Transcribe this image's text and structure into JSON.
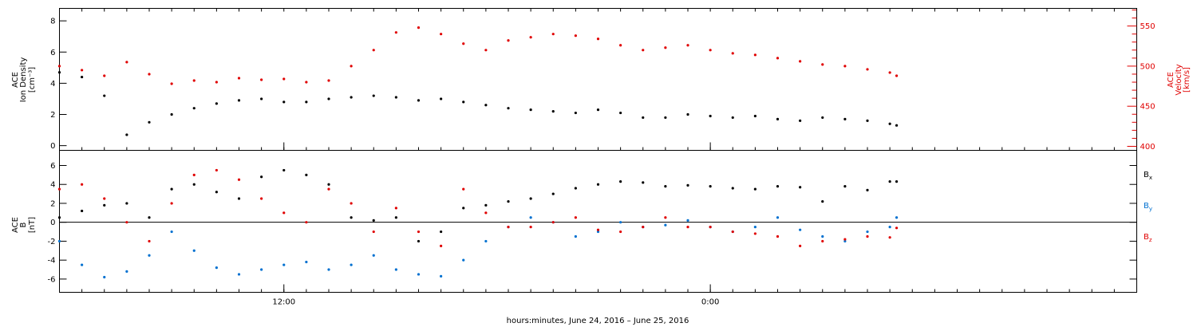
{
  "chart_data": [
    {
      "type": "scatter",
      "panel": "top",
      "left_axis": {
        "label_lines": [
          "ACE",
          "Ion Density",
          "[cm⁻³]"
        ],
        "range": [
          -0.3,
          8.8
        ],
        "ticks": [
          0,
          2,
          4,
          6,
          8
        ],
        "tick_labels": [
          "0",
          "2",
          "4",
          "6",
          "8"
        ]
      },
      "right_axis": {
        "label_lines": [
          "ACE",
          "Velocity",
          "[km/s]"
        ],
        "range": [
          395,
          572
        ],
        "ticks": [
          400,
          450,
          500,
          550
        ],
        "tick_labels": [
          "400",
          "450",
          "500",
          "550"
        ]
      },
      "series": [
        {
          "name": "Ion Density",
          "color": "#000000",
          "axis": "left",
          "x_hours": [
            0,
            1,
            2,
            3,
            4,
            5,
            6,
            7,
            8,
            9,
            10,
            11,
            12,
            13,
            14,
            15,
            16,
            17,
            18,
            19,
            20,
            21,
            22,
            23,
            24,
            25,
            26,
            27,
            28,
            29,
            30,
            31,
            32,
            33,
            34,
            35,
            36,
            37,
            37.3
          ],
          "values": [
            4.7,
            4.4,
            3.2,
            0.7,
            1.5,
            2.0,
            2.4,
            2.7,
            2.9,
            3.0,
            2.8,
            2.8,
            3.0,
            3.1,
            3.2,
            3.1,
            2.9,
            3.0,
            2.8,
            2.6,
            2.4,
            2.3,
            2.2,
            2.1,
            2.3,
            2.1,
            1.8,
            1.8,
            2.0,
            1.9,
            1.8,
            1.9,
            1.7,
            1.6,
            1.8,
            1.7,
            1.6,
            1.4,
            1.3
          ]
        },
        {
          "name": "Velocity",
          "color": "#e00000",
          "axis": "right",
          "x_hours": [
            0,
            1,
            2,
            3,
            4,
            5,
            6,
            7,
            8,
            9,
            10,
            11,
            12,
            13,
            14,
            15,
            16,
            17,
            18,
            19,
            20,
            21,
            22,
            23,
            24,
            25,
            26,
            27,
            28,
            29,
            30,
            31,
            32,
            33,
            34,
            35,
            36,
            37,
            37.3
          ],
          "values": [
            500,
            495,
            488,
            505,
            490,
            478,
            482,
            480,
            485,
            483,
            484,
            480,
            482,
            500,
            520,
            542,
            548,
            540,
            528,
            520,
            532,
            536,
            540,
            538,
            534,
            526,
            520,
            523,
            526,
            520,
            516,
            514,
            510,
            506,
            502,
            500,
            496,
            492,
            488
          ]
        }
      ]
    },
    {
      "type": "scatter",
      "panel": "bottom",
      "left_axis": {
        "label_lines": [
          "ACE",
          "B",
          "[nT]"
        ],
        "range": [
          -7.4,
          7.6
        ],
        "ticks": [
          -6,
          -4,
          -2,
          0,
          2,
          4,
          6
        ],
        "tick_labels": [
          "-6",
          "-4",
          "-2",
          "0",
          "2",
          "4",
          "6"
        ]
      },
      "zero_line": true,
      "legend_position": "right",
      "series": [
        {
          "name": "B",
          "subscript": "x",
          "color": "#000000",
          "x_hours": [
            0,
            1,
            2,
            3,
            4,
            5,
            6,
            7,
            8,
            9,
            10,
            11,
            12,
            13,
            14,
            15,
            16,
            17,
            18,
            19,
            20,
            21,
            22,
            23,
            24,
            25,
            26,
            27,
            28,
            29,
            30,
            31,
            32,
            33,
            34,
            35,
            36,
            37,
            37.3
          ],
          "values": [
            0.5,
            1.2,
            1.8,
            2.0,
            0.5,
            3.5,
            4.0,
            3.2,
            2.5,
            4.8,
            5.5,
            5.0,
            4.0,
            0.5,
            0.2,
            0.5,
            -2.0,
            -1.0,
            1.5,
            1.8,
            2.2,
            2.5,
            3.0,
            3.6,
            4.0,
            4.3,
            4.2,
            3.8,
            3.9,
            3.8,
            3.6,
            3.5,
            3.8,
            3.7,
            2.2,
            3.8,
            3.4,
            4.3,
            4.3
          ]
        },
        {
          "name": "B",
          "subscript": "y",
          "color": "#0070d0",
          "x_hours": [
            0,
            1,
            2,
            3,
            4,
            5,
            6,
            7,
            8,
            9,
            10,
            11,
            12,
            13,
            14,
            15,
            16,
            17,
            18,
            19,
            20,
            21,
            22,
            23,
            24,
            25,
            26,
            27,
            28,
            29,
            30,
            31,
            32,
            33,
            34,
            35,
            36,
            37,
            37.3
          ],
          "values": [
            -2.0,
            -4.5,
            -5.8,
            -5.2,
            -3.5,
            -1.0,
            -3.0,
            -4.8,
            -5.5,
            -5.0,
            -4.5,
            -4.2,
            -5.0,
            -4.5,
            -3.5,
            -5.0,
            -5.5,
            -5.7,
            -4.0,
            -2.0,
            -0.5,
            0.5,
            0.0,
            -1.5,
            -1.0,
            0.0,
            -0.5,
            -0.3,
            0.2,
            -0.5,
            -1.0,
            -0.5,
            0.5,
            -0.8,
            -1.5,
            -2.0,
            -1.0,
            -0.5,
            0.5
          ]
        },
        {
          "name": "B",
          "subscript": "z",
          "color": "#e00000",
          "x_hours": [
            0,
            1,
            2,
            3,
            4,
            5,
            6,
            7,
            8,
            9,
            10,
            11,
            12,
            13,
            14,
            15,
            16,
            17,
            18,
            19,
            20,
            21,
            22,
            23,
            24,
            25,
            26,
            27,
            28,
            29,
            30,
            31,
            32,
            33,
            34,
            35,
            36,
            37,
            37.3
          ],
          "values": [
            3.5,
            4.0,
            2.5,
            0.0,
            -2.0,
            2.0,
            5.0,
            5.5,
            4.5,
            2.5,
            1.0,
            0.0,
            3.5,
            2.0,
            -1.0,
            1.5,
            -1.0,
            -2.5,
            3.5,
            1.0,
            -0.5,
            -0.5,
            0.0,
            0.5,
            -0.8,
            -1.0,
            -0.5,
            0.5,
            -0.5,
            -0.5,
            -1.0,
            -1.2,
            -1.5,
            -2.5,
            -2.0,
            -1.8,
            -1.5,
            -1.6,
            -0.6
          ]
        }
      ]
    }
  ],
  "x_axis": {
    "range_hours": [
      0,
      48
    ],
    "tick_labels": [
      {
        "hour": 10,
        "label": "12:00"
      },
      {
        "hour": 29,
        "label": "0:00"
      }
    ],
    "minor_tick_hours": [
      0,
      1,
      2,
      3,
      4,
      5,
      6,
      7,
      8,
      9,
      10,
      11,
      12,
      13,
      14,
      15,
      16,
      17,
      18,
      19,
      20,
      21,
      22,
      23,
      24,
      25,
      26,
      27,
      28,
      29,
      30,
      31,
      32,
      33,
      34,
      35,
      36,
      37,
      38,
      39,
      40,
      41,
      42,
      43,
      44,
      45,
      46,
      47,
      48
    ],
    "title": "hours:minutes, June 24, 2016 – June 25, 2016"
  }
}
